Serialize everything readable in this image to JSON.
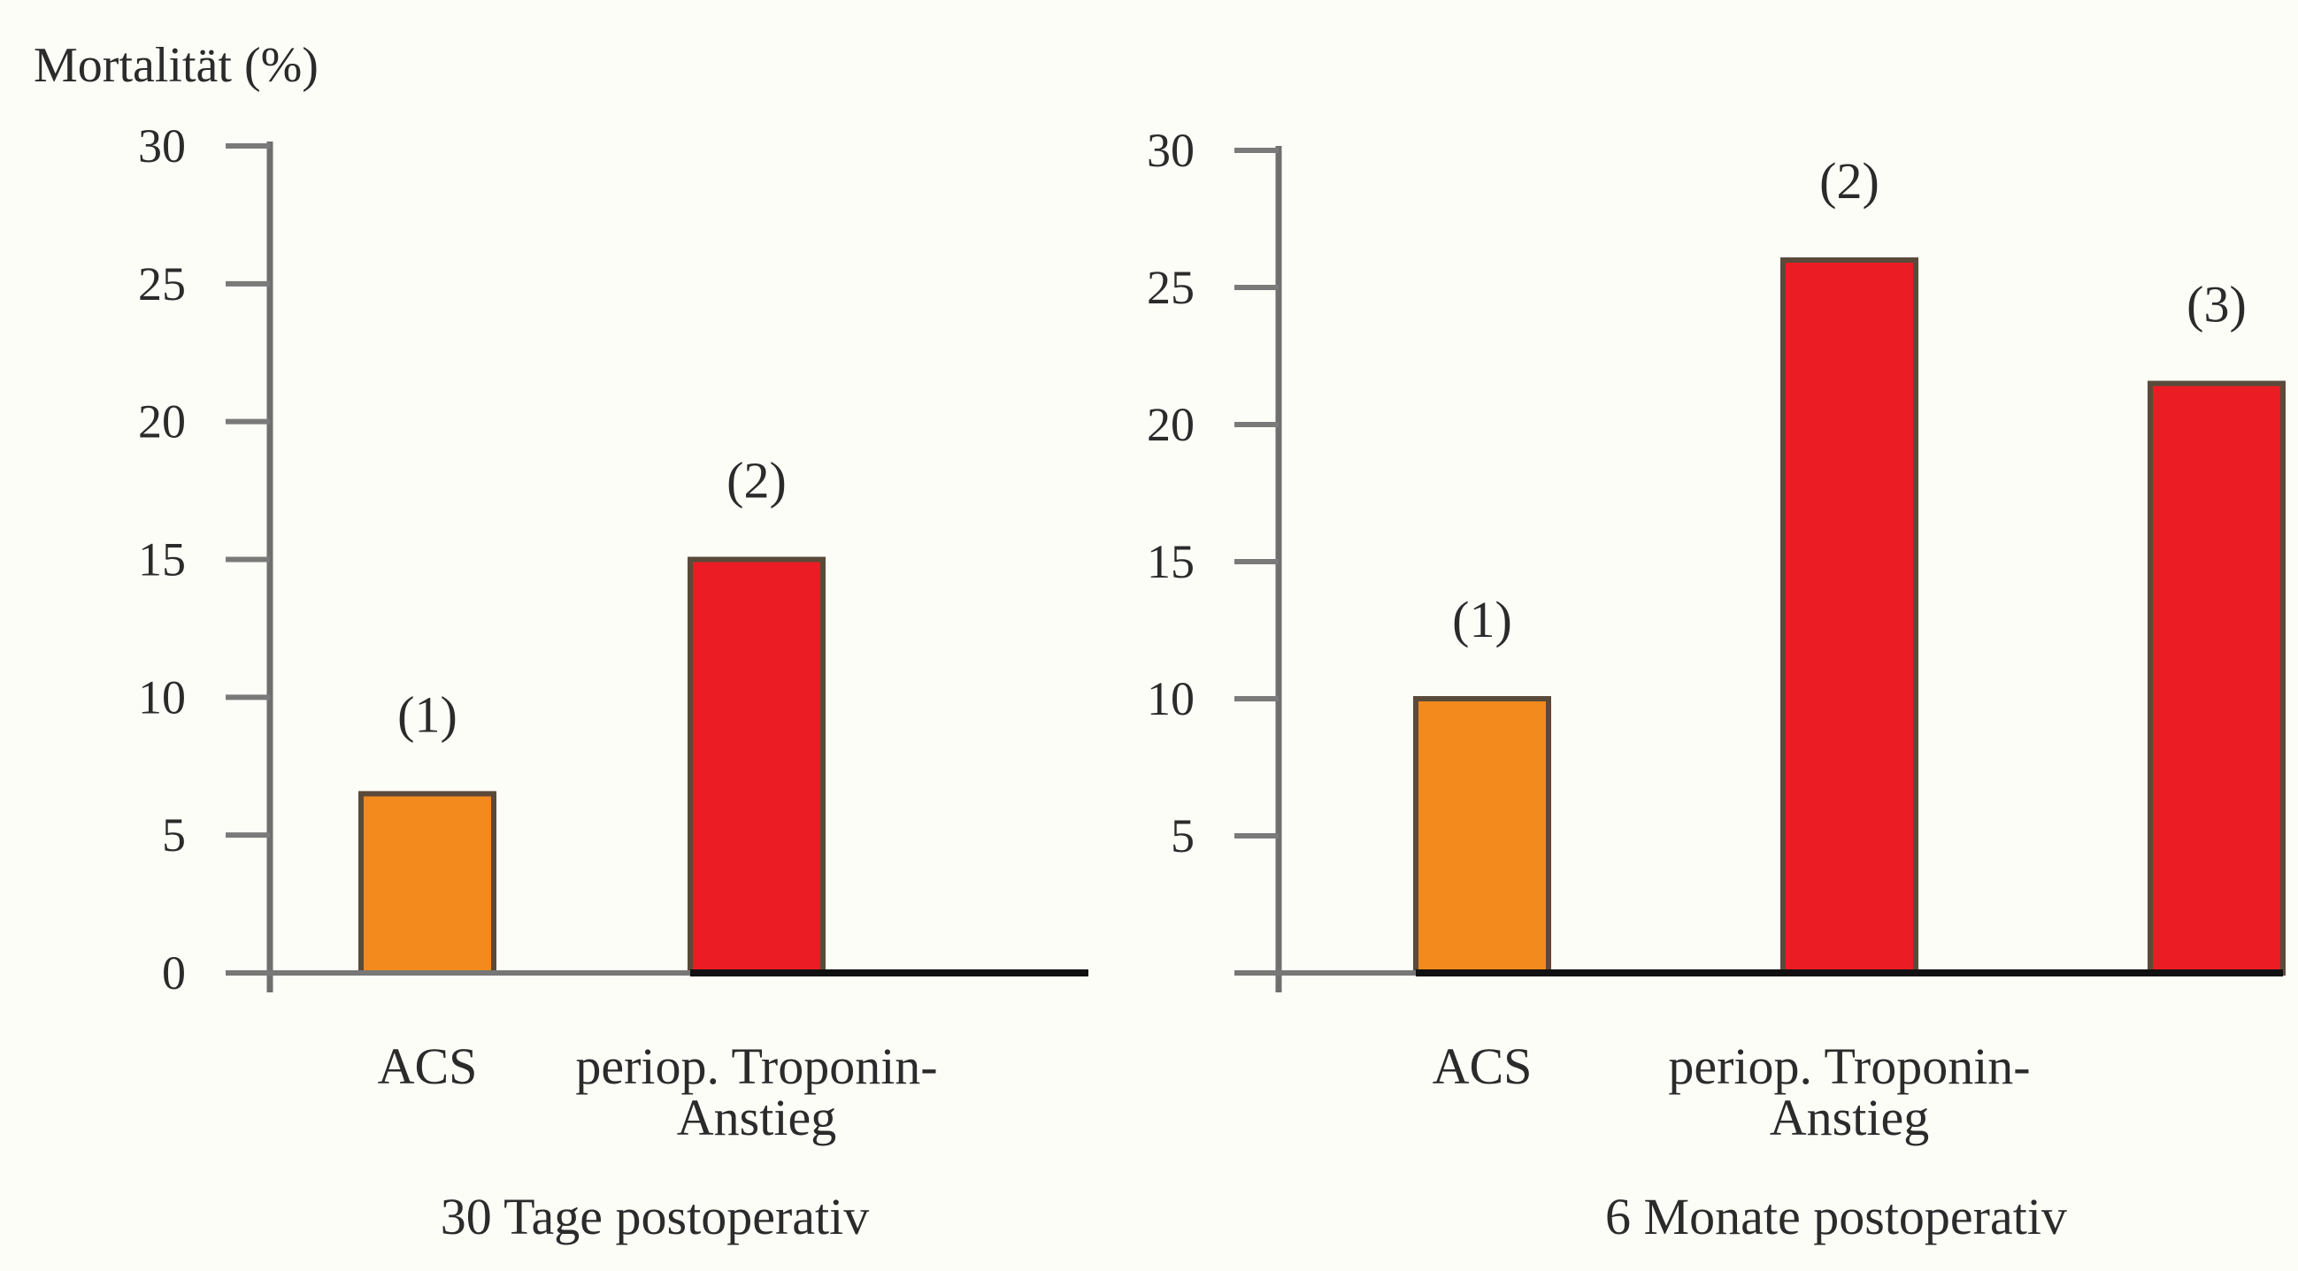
{
  "chart_data": [
    {
      "type": "bar",
      "ylabel": "Mortalität (%)",
      "ylim": [
        0,
        30
      ],
      "yticks": [
        "0",
        "5",
        "10",
        "15",
        "20",
        "25",
        "30"
      ],
      "categories": [
        "ACS",
        "periop. Troponin-Anstieg"
      ],
      "category_lines": [
        [
          "ACS"
        ],
        [
          "periop. Troponin-",
          "Anstieg"
        ]
      ],
      "values": [
        6.5,
        15
      ],
      "annotations": [
        "(1)",
        "(2)"
      ],
      "bar_colors": [
        "#f28a1e",
        "#ec1c24"
      ],
      "title": "30 Tage postoperativ"
    },
    {
      "type": "bar",
      "ylabel": "",
      "ylim": [
        0,
        30
      ],
      "yticks": [
        "",
        "5",
        "10",
        "15",
        "20",
        "25",
        "30"
      ],
      "categories": [
        "ACS",
        "periop. Troponin-Anstieg",
        ""
      ],
      "category_lines": [
        [
          "ACS"
        ],
        [
          "periop. Troponin-",
          "Anstieg"
        ],
        []
      ],
      "values": [
        10,
        26,
        21.5
      ],
      "annotations": [
        "(1)",
        "(2)",
        "(3)"
      ],
      "bar_colors": [
        "#f28a1e",
        "#ec1c24",
        "#ec1c24"
      ],
      "title": "6 Monate postoperativ"
    }
  ]
}
